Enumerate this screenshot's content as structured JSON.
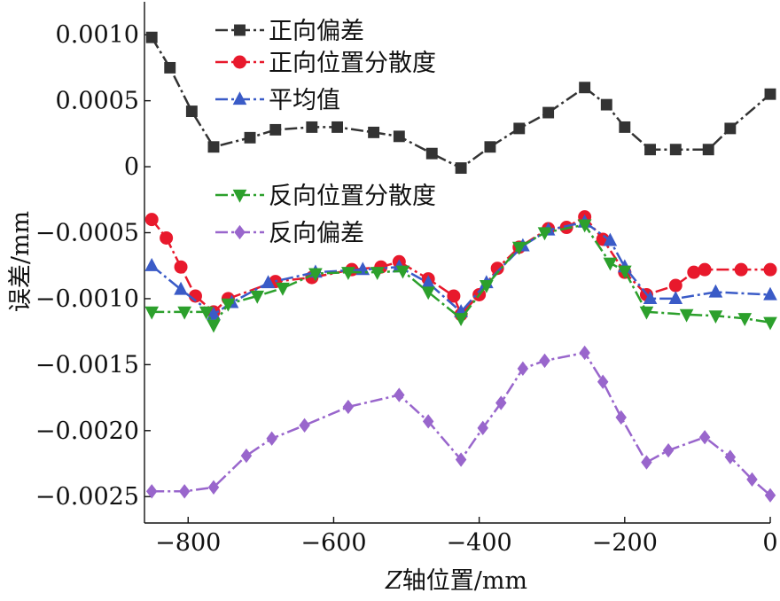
{
  "chart_data": {
    "type": "line",
    "title": "",
    "xlabel": {
      "italic": "Z",
      "rest": "轴位置/mm"
    },
    "ylabel": "误差/mm",
    "xlim": [
      -860,
      0
    ],
    "ylim": [
      -0.0027,
      0.00125
    ],
    "xticks": [
      -800,
      -600,
      -400,
      -200,
      0
    ],
    "xtick_labels": [
      "−800",
      "−600",
      "−400",
      "−200",
      "0"
    ],
    "yticks": [
      0.001,
      0.0005,
      0,
      -0.0005,
      -0.001,
      -0.0015,
      -0.002,
      -0.0025
    ],
    "ytick_labels": [
      "0.0010",
      "0.0005",
      "0",
      "−0.0005",
      "−0.0010",
      "−0.0015",
      "−0.0020",
      "−0.0025"
    ],
    "grid": false,
    "legend_placement": "top-center",
    "series": [
      {
        "name": "正向偏差",
        "color": "#333333",
        "marker": "square",
        "x": [
          -850,
          -825,
          -795,
          -765,
          -715,
          -680,
          -630,
          -595,
          -545,
          -510,
          -465,
          -425,
          -385,
          -345,
          -305,
          -255,
          -225,
          -200,
          -165,
          -130,
          -85,
          -55,
          0
        ],
        "y": [
          0.00098,
          0.00075,
          0.00042,
          0.00015,
          0.00022,
          0.00028,
          0.0003,
          0.0003,
          0.00026,
          0.00023,
          0.0001,
          -1e-05,
          0.00015,
          0.00029,
          0.00041,
          0.0006,
          0.00047,
          0.0003,
          0.00013,
          0.00013,
          0.00013,
          0.00029,
          0.00055
        ]
      },
      {
        "name": "正向位置分散度",
        "color": "#e8192c",
        "marker": "circle",
        "x": [
          -850,
          -830,
          -810,
          -790,
          -765,
          -745,
          -680,
          -630,
          -575,
          -535,
          -510,
          -470,
          -435,
          -425,
          -400,
          -375,
          -345,
          -305,
          -280,
          -255,
          -230,
          -200,
          -170,
          -130,
          -105,
          -90,
          -40,
          0
        ],
        "y": [
          -0.0004,
          -0.00054,
          -0.00076,
          -0.00098,
          -0.0011,
          -0.001,
          -0.00087,
          -0.00084,
          -0.00078,
          -0.00076,
          -0.00072,
          -0.00085,
          -0.00098,
          -0.00112,
          -0.00097,
          -0.00077,
          -0.00061,
          -0.00047,
          -0.00046,
          -0.00038,
          -0.00055,
          -0.0008,
          -0.00097,
          -0.0009,
          -0.0008,
          -0.00078,
          -0.00078,
          -0.00078
        ]
      },
      {
        "name": "平均值",
        "color": "#3a5bc7",
        "marker": "triangle-up",
        "x": [
          -850,
          -810,
          -765,
          -740,
          -690,
          -625,
          -560,
          -510,
          -470,
          -425,
          -390,
          -340,
          -305,
          -255,
          -220,
          -200,
          -165,
          -130,
          -75,
          0
        ],
        "y": [
          -0.00075,
          -0.00093,
          -0.00112,
          -0.00103,
          -0.00088,
          -0.0008,
          -0.00078,
          -0.00076,
          -0.00088,
          -0.0011,
          -0.00088,
          -0.0006,
          -0.00048,
          -0.00042,
          -0.00056,
          -0.00076,
          -0.001,
          -0.001,
          -0.00095,
          -0.00097
        ]
      },
      {
        "name": "反向位置分散度",
        "color": "#2ca02c",
        "marker": "triangle-down",
        "x": [
          -850,
          -805,
          -775,
          -765,
          -745,
          -705,
          -670,
          -625,
          -580,
          -540,
          -505,
          -470,
          -425,
          -390,
          -345,
          -310,
          -255,
          -220,
          -200,
          -170,
          -115,
          -75,
          -35,
          0
        ],
        "y": [
          -0.0011,
          -0.0011,
          -0.0011,
          -0.0012,
          -0.00104,
          -0.00098,
          -0.00092,
          -0.00081,
          -0.0008,
          -0.0008,
          -0.00079,
          -0.00095,
          -0.00115,
          -0.0009,
          -0.00061,
          -0.0005,
          -0.00044,
          -0.00073,
          -0.00079,
          -0.0011,
          -0.00112,
          -0.00113,
          -0.00115,
          -0.00118
        ]
      },
      {
        "name": "反向偏差",
        "color": "#9966cc",
        "marker": "diamond",
        "x": [
          -850,
          -805,
          -765,
          -720,
          -685,
          -640,
          -580,
          -510,
          -470,
          -425,
          -395,
          -370,
          -340,
          -310,
          -255,
          -230,
          -205,
          -170,
          -140,
          -90,
          -55,
          -25,
          0
        ],
        "y": [
          -0.00246,
          -0.00246,
          -0.00243,
          -0.00219,
          -0.00206,
          -0.00196,
          -0.00182,
          -0.00173,
          -0.00193,
          -0.00222,
          -0.00198,
          -0.00179,
          -0.00153,
          -0.00147,
          -0.00141,
          -0.00163,
          -0.0019,
          -0.00224,
          -0.00215,
          -0.00205,
          -0.0022,
          -0.00237,
          -0.00249
        ]
      }
    ]
  }
}
